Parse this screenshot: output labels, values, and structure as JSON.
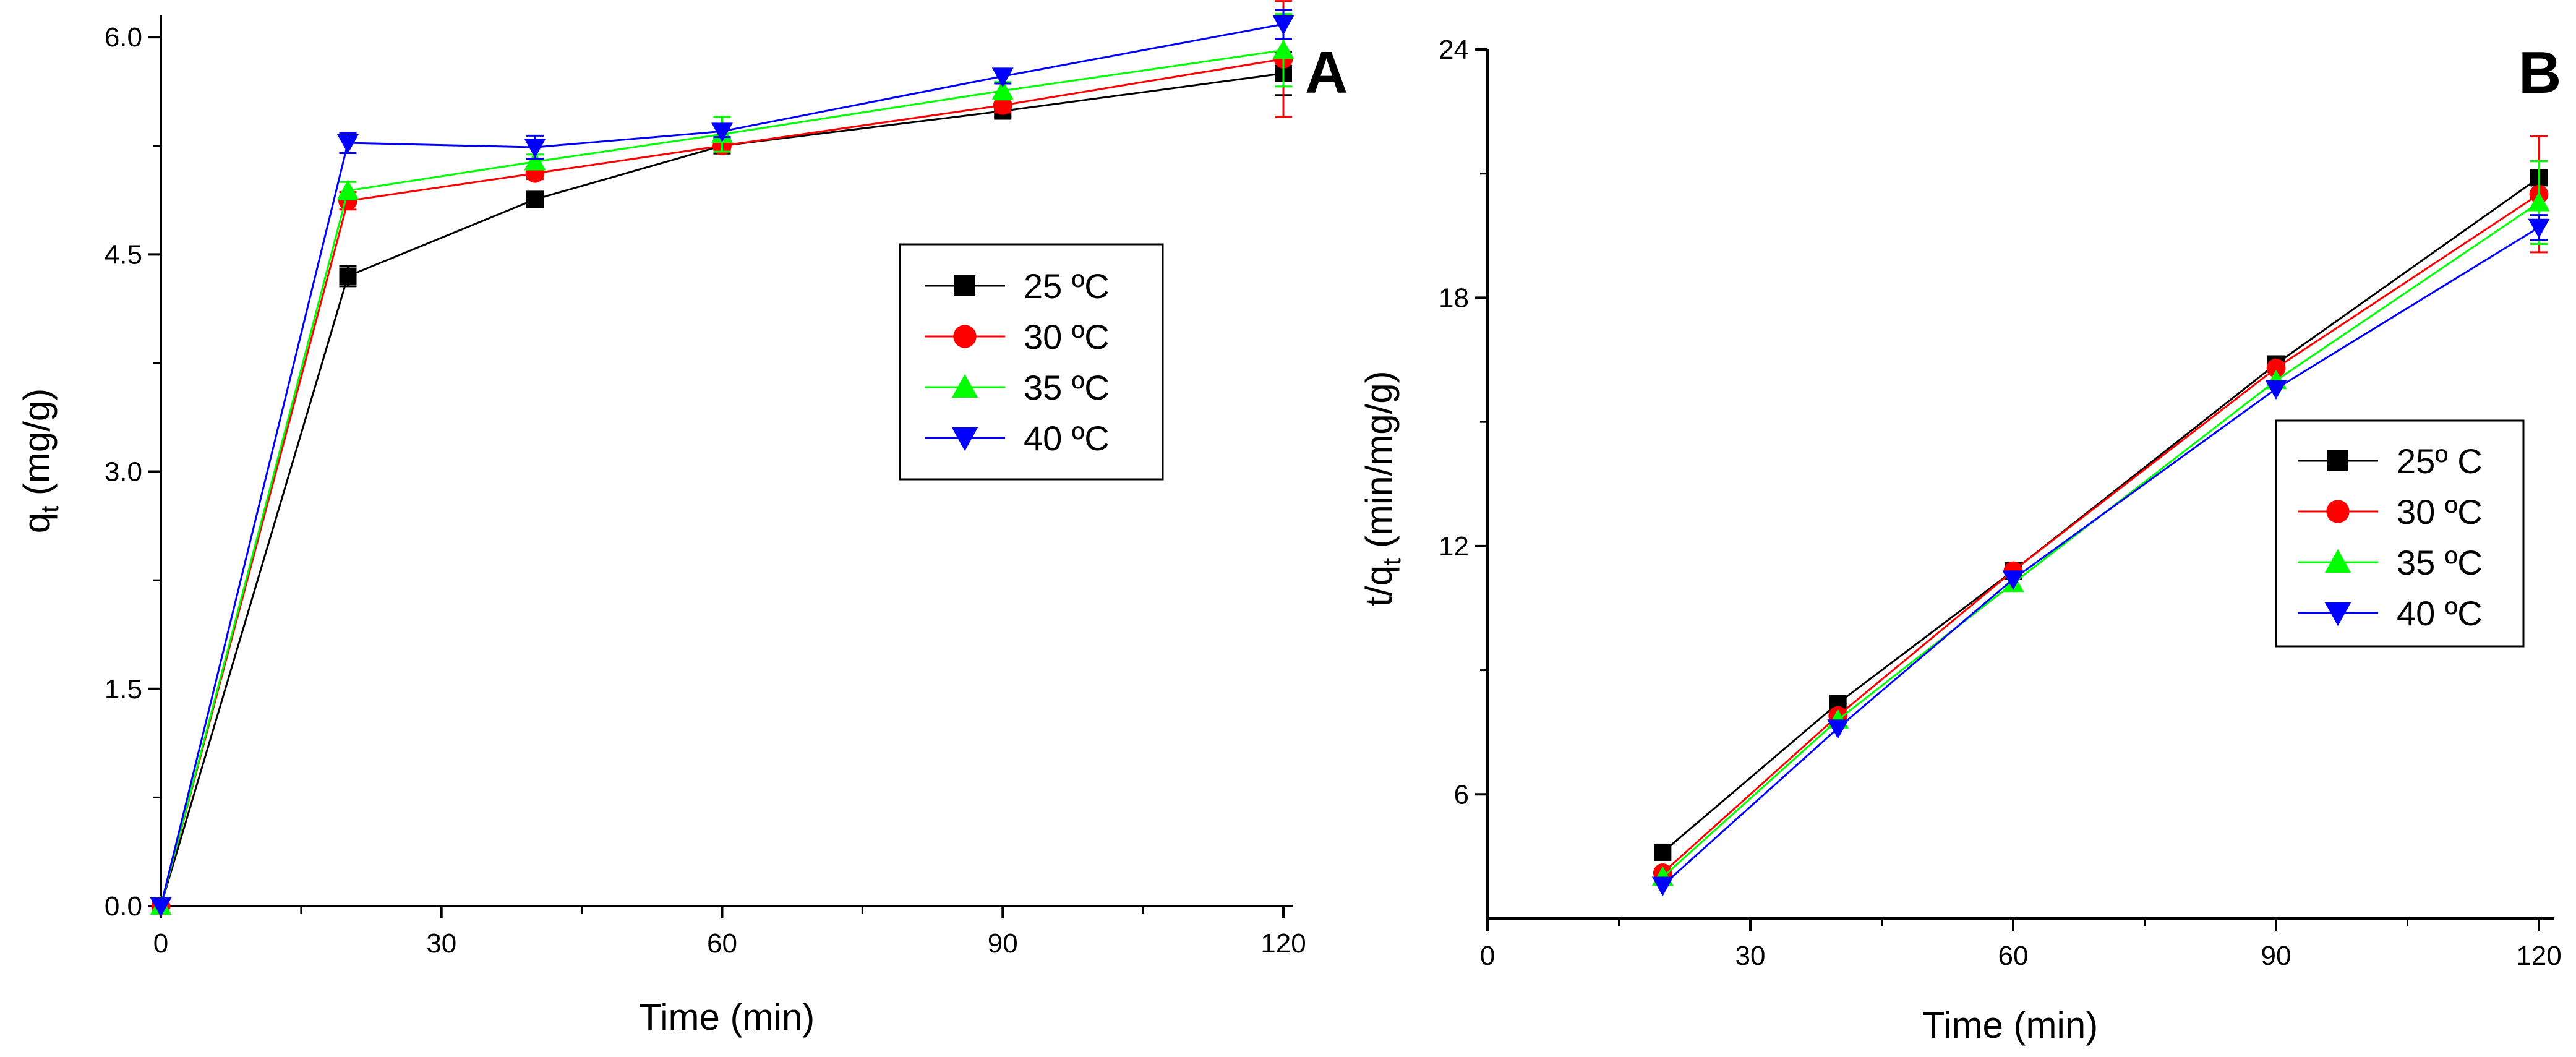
{
  "chart_data": [
    {
      "type": "line",
      "panel_label": "A",
      "xlabel": "Time (min)",
      "ylabel_main": "q",
      "ylabel_sub": "t",
      "ylabel_rest": " (mg/g)",
      "xlim": [
        0,
        120
      ],
      "ylim": [
        0,
        6.15
      ],
      "xticks": [
        0,
        30,
        60,
        90,
        120
      ],
      "xtick_labels": [
        "0",
        "30",
        "60",
        "90",
        "120"
      ],
      "yticks": [
        0.0,
        1.5,
        3.0,
        4.5,
        6.0
      ],
      "ytick_labels": [
        "0.0",
        "1.5",
        "3.0",
        "4.5",
        "6.0"
      ],
      "legend_position": "center-right",
      "series": [
        {
          "name": "25 ºC",
          "color": "#000000",
          "marker": "square",
          "x": [
            0,
            20,
            40,
            60,
            90,
            120
          ],
          "y": [
            0,
            4.35,
            4.88,
            5.25,
            5.49,
            5.75
          ],
          "err": [
            0,
            0.07,
            0.03,
            0.04,
            0.04,
            0.15
          ]
        },
        {
          "name": "30 ºC",
          "color": "#ff0000",
          "marker": "circle",
          "x": [
            0,
            20,
            40,
            60,
            90,
            120
          ],
          "y": [
            0,
            4.87,
            5.06,
            5.25,
            5.53,
            5.85
          ],
          "err": [
            0,
            0.06,
            0.04,
            0.04,
            0.05,
            0.4
          ]
        },
        {
          "name": "35 ºC",
          "color": "#00ff00",
          "marker": "triangle-up",
          "x": [
            0,
            20,
            40,
            60,
            90,
            120
          ],
          "y": [
            0,
            4.94,
            5.14,
            5.33,
            5.63,
            5.91
          ],
          "err": [
            0,
            0.06,
            0.05,
            0.12,
            0.06,
            0.25
          ]
        },
        {
          "name": "40 ºC",
          "color": "#0000ff",
          "marker": "triangle-down",
          "x": [
            0,
            20,
            40,
            60,
            90,
            120
          ],
          "y": [
            0,
            5.27,
            5.24,
            5.35,
            5.73,
            6.09
          ],
          "err": [
            0,
            0.07,
            0.08,
            0.04,
            0.05,
            0.1
          ]
        }
      ]
    },
    {
      "type": "line",
      "panel_label": "B",
      "xlabel": "Time (min)",
      "ylabel_main": "t/q",
      "ylabel_sub": "t",
      "ylabel_rest": " (min/mg/g)",
      "xlim": [
        0,
        120
      ],
      "ylim": [
        3,
        24
      ],
      "xticks": [
        0,
        30,
        60,
        90,
        120
      ],
      "xtick_labels": [
        "0",
        "30",
        "60",
        "90",
        "120"
      ],
      "yticks": [
        6,
        12,
        18,
        24
      ],
      "ytick_labels": [
        "6",
        "12",
        "18",
        "24"
      ],
      "legend_position": "center-right",
      "series": [
        {
          "name": "25º C",
          "color": "#000000",
          "marker": "square",
          "x": [
            20,
            40,
            60,
            90,
            120
          ],
          "y": [
            4.6,
            8.2,
            11.4,
            16.4,
            20.9
          ],
          "err": [
            0,
            0,
            0,
            0,
            0.4
          ]
        },
        {
          "name": "30 ºC",
          "color": "#ff0000",
          "marker": "circle",
          "x": [
            20,
            40,
            60,
            90,
            120
          ],
          "y": [
            4.1,
            7.9,
            11.4,
            16.3,
            20.5
          ],
          "err": [
            0,
            0,
            0,
            0,
            1.4
          ]
        },
        {
          "name": "35 ºC",
          "color": "#00ff00",
          "marker": "triangle-up",
          "x": [
            20,
            40,
            60,
            90,
            120
          ],
          "y": [
            4.0,
            7.8,
            11.1,
            16.0,
            20.3
          ],
          "err": [
            0,
            0,
            0,
            0,
            1.0
          ]
        },
        {
          "name": "40 ºC",
          "color": "#0000ff",
          "marker": "triangle-down",
          "x": [
            20,
            40,
            60,
            90,
            120
          ],
          "y": [
            3.8,
            7.6,
            11.2,
            15.8,
            19.7
          ],
          "err": [
            0,
            0,
            0,
            0,
            0.3
          ]
        }
      ]
    }
  ]
}
